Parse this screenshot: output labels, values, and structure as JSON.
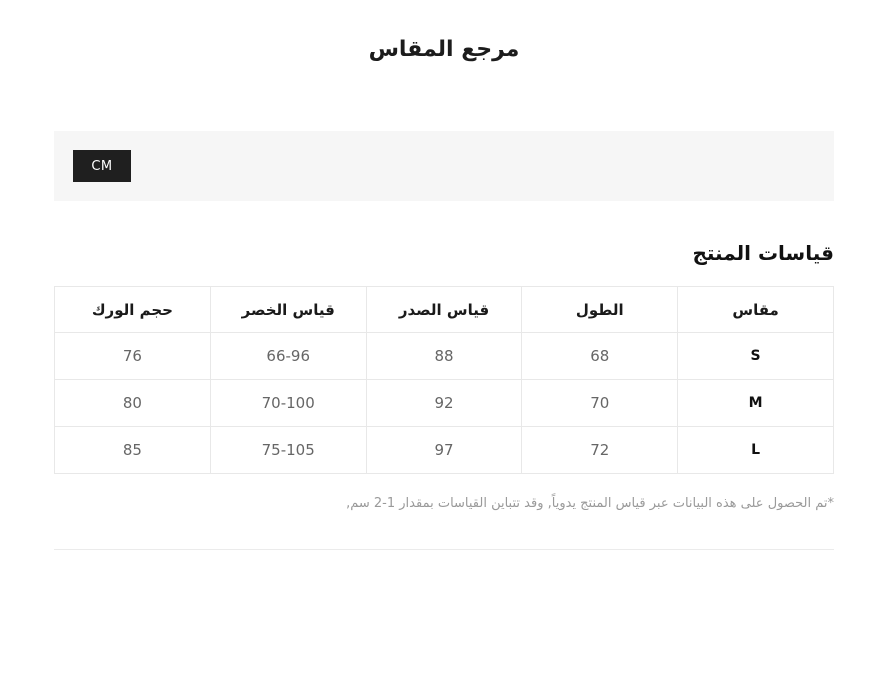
{
  "page_title": "مرجع المقاس",
  "unit_bar": {
    "cm_label": "CM"
  },
  "section": {
    "heading": "قياسات المنتج"
  },
  "table": {
    "headers": {
      "size": "مقاس",
      "length": "الطول",
      "chest": "قياس الصدر",
      "waist": "قياس الخصر",
      "hip": "حجم الورك"
    },
    "rows": [
      {
        "size": "S",
        "length": "68",
        "chest": "88",
        "waist": "66-96",
        "hip": "76"
      },
      {
        "size": "M",
        "length": "70",
        "chest": "92",
        "waist": "70-100",
        "hip": "80"
      },
      {
        "size": "L",
        "length": "72",
        "chest": "97",
        "waist": "75-105",
        "hip": "85"
      }
    ]
  },
  "footnote": "*تم الحصول على هذه البيانات عبر قياس المنتج يدوياً, وقد تتباين القياسات بمقدار 1-2 سم,",
  "colors": {
    "toggle_bg": "#1f1f1f",
    "bar_bg": "#f6f6f6",
    "table_border": "#e8e8e8",
    "data_text": "#666666",
    "footnote_text": "#9a9a9a"
  }
}
